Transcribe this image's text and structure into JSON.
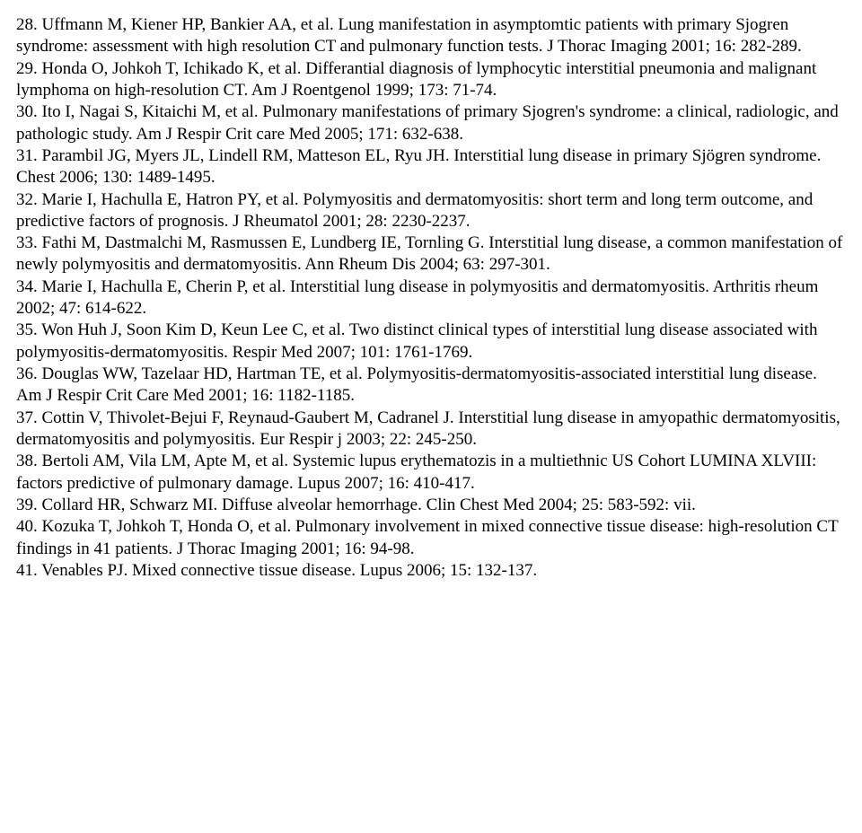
{
  "references": [
    "28. Uffmann M, Kiener HP, Bankier AA, et al. Lung manifestation in asymptomtic patients with primary Sjogren syndrome: assessment with high resolution CT and pulmonary function tests. J Thorac Imaging 2001; 16: 282-289.",
    "29. Honda O, Johkoh T, Ichikado K, et al. Differantial diagnosis of lymphocytic interstitial pneumonia and malignant lymphoma on high-resolution CT. Am J Roentgenol 1999; 173: 71-74.",
    "30. Ito I, Nagai S, Kitaichi M, et al. Pulmonary manifestations of primary Sjogren's syndrome: a clinical, radiologic, and pathologic study. Am J Respir Crit care Med 2005; 171: 632-638.",
    "31. Parambil JG, Myers JL, Lindell RM, Matteson EL, Ryu JH. Interstitial lung disease in primary Sjögren syndrome. Chest 2006; 130: 1489-1495.",
    "32. Marie I, Hachulla E, Hatron PY, et al. Polymyositis and dermatomyositis: short term and long term outcome, and predictive factors of prognosis. J Rheumatol 2001; 28: 2230-2237.",
    "33. Fathi M, Dastmalchi M, Rasmussen E, Lundberg IE, Tornling G. Interstitial lung disease, a common manifestation of newly polymyositis and dermatomyositis. Ann Rheum Dis 2004; 63: 297-301.",
    "34. Marie I, Hachulla E, Cherin P, et al. Interstitial lung disease in polymyositis and dermatomyositis. Arthritis rheum 2002; 47: 614-622.",
    "35. Won Huh J, Soon Kim D, Keun Lee C, et al. Two distinct clinical types of interstitial lung disease associated with polymyositis-dermatomyositis. Respir Med 2007; 101: 1761-1769.",
    "36. Douglas WW, Tazelaar HD, Hartman TE, et al. Polymyositis-dermatomyositis-associated interstitial lung disease. Am J Respir Crit Care Med 2001; 16: 1182-1185.",
    "37. Cottin V, Thivolet-Bejui F, Reynaud-Gaubert M, Cadranel J. Interstitial lung disease in amyopathic dermatomyositis, dermatomyositis and polymyositis. Eur Respir j 2003; 22: 245-250.",
    "38. Bertoli AM, Vila LM, Apte M, et al. Systemic lupus erythematozis in a multiethnic US Cohort LUMINA XLVIII: factors predictive of pulmonary damage. Lupus 2007; 16: 410-417.",
    "39. Collard HR, Schwarz MI. Diffuse alveolar hemorrhage. Clin Chest Med 2004; 25: 583-592: vii.",
    "40. Kozuka T, Johkoh T, Honda O, et al. Pulmonary involvement in mixed connective tissue disease: high-resolution CT findings in 41 patients. J Thorac Imaging 2001; 16: 94-98.",
    "41. Venables PJ. Mixed connective tissue disease. Lupus 2006; 15: 132-137."
  ]
}
